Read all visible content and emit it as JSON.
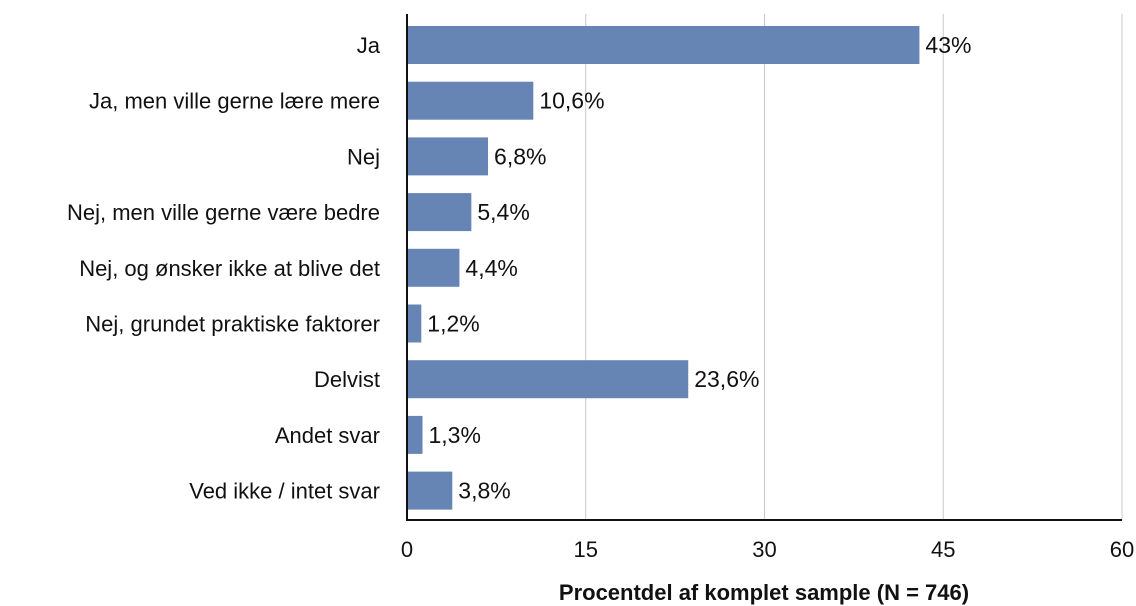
{
  "chart_data": {
    "type": "bar",
    "orientation": "horizontal",
    "categories": [
      "Ja",
      "Ja, men ville gerne lære mere",
      "Nej",
      "Nej, men ville gerne være bedre",
      "Nej, og ønsker ikke at blive det",
      "Nej, grundet praktiske faktorer",
      "Delvist",
      "Andet svar",
      "Ved ikke / intet svar"
    ],
    "values": [
      43,
      10.6,
      6.8,
      5.4,
      4.4,
      1.2,
      23.6,
      1.3,
      3.8
    ],
    "value_labels": [
      "43%",
      "10,6%",
      "6,8%",
      "5,4%",
      "4,4%",
      "1,2%",
      "23,6%",
      "1,3%",
      "3,8%"
    ],
    "xlabel": "Procentdel af komplet sample (N = 746)",
    "ylabel": "",
    "xlim": [
      0,
      60
    ],
    "xticks": [
      0,
      15,
      30,
      45,
      60
    ],
    "xtick_labels": [
      "0",
      "15",
      "30",
      "45",
      "60"
    ],
    "grid": "vertical",
    "bar_color": "#6685b5"
  }
}
